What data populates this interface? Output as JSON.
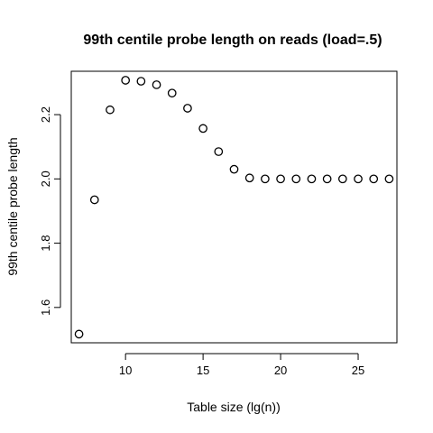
{
  "chart_data": {
    "type": "scatter",
    "title": "99th centile probe length on reads (load=.5)",
    "xlabel": "Table size (lg(n))",
    "ylabel": "99th centile probe length",
    "xlim": [
      6.5,
      27.5
    ],
    "ylim": [
      1.49,
      2.335
    ],
    "x_ticks": [
      10,
      15,
      20,
      25
    ],
    "y_ticks": [
      1.6,
      1.8,
      2.0,
      2.2
    ],
    "x_tick_labels": [
      "10",
      "15",
      "20",
      "25"
    ],
    "y_tick_labels": [
      "1.6",
      "1.8",
      "2.0",
      "2.2"
    ],
    "grid": false,
    "legend": "none",
    "marker": "open-circle",
    "points": [
      {
        "x": 7,
        "y": 1.517
      },
      {
        "x": 8,
        "y": 1.935
      },
      {
        "x": 9,
        "y": 2.215
      },
      {
        "x": 10,
        "y": 2.307
      },
      {
        "x": 11,
        "y": 2.304
      },
      {
        "x": 12,
        "y": 2.293
      },
      {
        "x": 13,
        "y": 2.267
      },
      {
        "x": 14,
        "y": 2.22
      },
      {
        "x": 15,
        "y": 2.157
      },
      {
        "x": 16,
        "y": 2.085
      },
      {
        "x": 17,
        "y": 2.03
      },
      {
        "x": 18,
        "y": 2.003
      },
      {
        "x": 19,
        "y": 2.0
      },
      {
        "x": 20,
        "y": 2.0
      },
      {
        "x": 21,
        "y": 2.0
      },
      {
        "x": 22,
        "y": 2.0
      },
      {
        "x": 23,
        "y": 2.0
      },
      {
        "x": 24,
        "y": 2.0
      },
      {
        "x": 25,
        "y": 2.0
      },
      {
        "x": 26,
        "y": 2.0
      },
      {
        "x": 27,
        "y": 2.0
      }
    ]
  }
}
